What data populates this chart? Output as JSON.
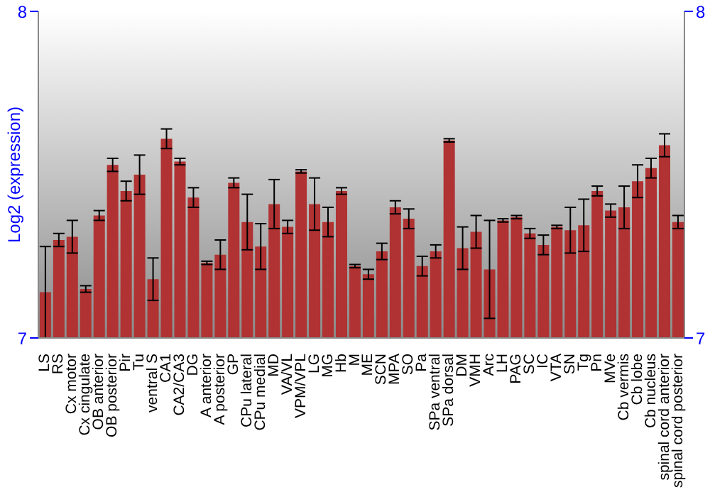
{
  "chart_data": {
    "type": "bar",
    "ylabel": "Log2 (expression)",
    "categories": [
      "LS",
      "RS",
      "Cx motor",
      "Cx cingulate",
      "OB anterior",
      "OB posterior",
      "Pir",
      "Tu",
      "ventral S",
      "CA1",
      "CA2/CA3",
      "DG",
      "A anterior",
      "A posterior",
      "GP",
      "CPu lateral",
      "CPu medial",
      "MD",
      "VA/VL",
      "VPM/VPL",
      "LG",
      "MG",
      "Hb",
      "M",
      "ME",
      "SCN",
      "MPA",
      "SO",
      "Pa",
      "SPa ventral",
      "SPa dorsal",
      "DM",
      "VMH",
      "Arc",
      "LH",
      "PAG",
      "SC",
      "IC",
      "VTA",
      "SN",
      "Tg",
      "Pn",
      "MVe",
      "Cb vermis",
      "Cb lobe",
      "Cb nucleus",
      "spinal cord anterior",
      "spinal cord posterior"
    ],
    "values": [
      7.14,
      7.3,
      7.31,
      7.15,
      7.375,
      7.53,
      7.45,
      7.5,
      7.18,
      7.61,
      7.54,
      7.43,
      7.23,
      7.255,
      7.475,
      7.355,
      7.28,
      7.41,
      7.34,
      7.51,
      7.41,
      7.355,
      7.45,
      7.22,
      7.195,
      7.265,
      7.4,
      7.365,
      7.22,
      7.265,
      7.605,
      7.275,
      7.325,
      7.21,
      7.36,
      7.37,
      7.32,
      7.285,
      7.34,
      7.33,
      7.345,
      7.45,
      7.39,
      7.4,
      7.48,
      7.52,
      7.59,
      7.355
    ],
    "errors": [
      0.14,
      0.02,
      0.05,
      0.01,
      0.015,
      0.02,
      0.03,
      0.06,
      0.065,
      0.03,
      0.01,
      0.03,
      0.005,
      0.045,
      0.015,
      0.085,
      0.07,
      0.075,
      0.02,
      0.005,
      0.08,
      0.045,
      0.01,
      0.005,
      0.015,
      0.025,
      0.02,
      0.03,
      0.03,
      0.02,
      0.005,
      0.065,
      0.05,
      0.15,
      0.005,
      0.005,
      0.015,
      0.03,
      0.005,
      0.07,
      0.08,
      0.015,
      0.02,
      0.065,
      0.05,
      0.03,
      0.035,
      0.02
    ],
    "color": "#b03232",
    "ylim": [
      7,
      8
    ],
    "yticks": [
      7,
      8
    ],
    "y2lim": [
      7,
      8
    ],
    "y2ticks": [
      7,
      8
    ],
    "grid": false
  }
}
